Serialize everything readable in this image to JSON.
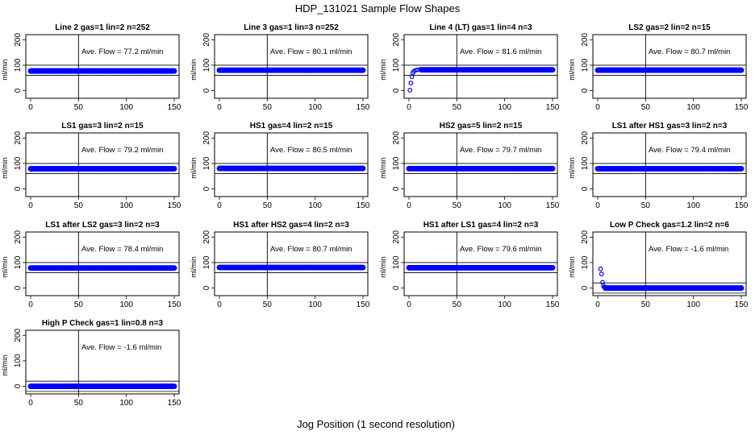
{
  "figure": {
    "title": "HDP_131021  Sample Flow Shapes",
    "xlabel": "Jog Position (1 second resolution)"
  },
  "colors": {
    "points": "#0000ff",
    "lines": "#000000",
    "background": "#ffffff"
  },
  "chart_data": [
    {
      "type": "scatter",
      "title": "Line 2 gas=1 lin=2 n=252",
      "annotation": "Ave. Flow =  77.2  ml/min",
      "ylabel": "ml/min",
      "xlim": [
        0,
        150
      ],
      "ylim": [
        -30,
        220
      ],
      "xticks": [
        0,
        50,
        100,
        150
      ],
      "yticks": [
        0,
        100,
        200
      ],
      "hlines": [
        60,
        100
      ],
      "vline": 50,
      "shape": "flat",
      "value": 77.2,
      "x_range": [
        0,
        150
      ]
    },
    {
      "type": "scatter",
      "title": "Line 3 gas=1 lin=3 n=252",
      "annotation": "Ave. Flow =  80.1  ml/min",
      "ylabel": "ml/min",
      "xlim": [
        0,
        150
      ],
      "ylim": [
        -30,
        220
      ],
      "xticks": [
        0,
        50,
        100,
        150
      ],
      "yticks": [
        0,
        100,
        200
      ],
      "hlines": [
        60,
        100
      ],
      "vline": 50,
      "shape": "flat",
      "value": 80.1,
      "x_range": [
        0,
        150
      ]
    },
    {
      "type": "scatter",
      "title": "Line 4 (LT) gas=1 lin=4 n=3",
      "annotation": "Ave. Flow =  81.6  ml/min",
      "ylabel": "ml/min",
      "xlim": [
        0,
        150
      ],
      "ylim": [
        -30,
        220
      ],
      "xticks": [
        0,
        50,
        100,
        150
      ],
      "yticks": [
        0,
        100,
        200
      ],
      "hlines": [
        60,
        100
      ],
      "vline": 50,
      "shape": "rise",
      "value": 81.6,
      "x_range": [
        0,
        150
      ],
      "start_points": [
        {
          "x": 1,
          "y": 2
        },
        {
          "x": 2,
          "y": 30
        },
        {
          "x": 3,
          "y": 55
        },
        {
          "x": 4,
          "y": 70
        },
        {
          "x": 5,
          "y": 76
        },
        {
          "x": 7,
          "y": 80
        },
        {
          "x": 9,
          "y": 82
        },
        {
          "x": 12,
          "y": 84
        }
      ]
    },
    {
      "type": "scatter",
      "title": "LS2 gas=2 lin=2 n=15",
      "annotation": "Ave. Flow =  80.7  ml/min",
      "ylabel": "ml/min",
      "xlim": [
        0,
        150
      ],
      "ylim": [
        -30,
        220
      ],
      "xticks": [
        0,
        50,
        100,
        150
      ],
      "yticks": [
        0,
        100,
        200
      ],
      "hlines": [
        60,
        100
      ],
      "vline": 50,
      "shape": "flat",
      "value": 80.7,
      "x_range": [
        0,
        150
      ]
    },
    {
      "type": "scatter",
      "title": "LS1 gas=3 lin=2 n=15",
      "annotation": "Ave. Flow =  79.2  ml/min",
      "ylabel": "ml/min",
      "xlim": [
        0,
        150
      ],
      "ylim": [
        -30,
        220
      ],
      "xticks": [
        0,
        50,
        100,
        150
      ],
      "yticks": [
        0,
        100,
        200
      ],
      "hlines": [
        60,
        100
      ],
      "vline": 50,
      "shape": "flat",
      "value": 79.2,
      "x_range": [
        0,
        150
      ]
    },
    {
      "type": "scatter",
      "title": "HS1 gas=4 lin=2 n=15",
      "annotation": "Ave. Flow =  80.5  ml/min",
      "ylabel": "ml/min",
      "xlim": [
        0,
        150
      ],
      "ylim": [
        -30,
        220
      ],
      "xticks": [
        0,
        50,
        100,
        150
      ],
      "yticks": [
        0,
        100,
        200
      ],
      "hlines": [
        60,
        100
      ],
      "vline": 50,
      "shape": "flat",
      "value": 80.5,
      "x_range": [
        0,
        150
      ]
    },
    {
      "type": "scatter",
      "title": "HS2 gas=5 lin=2 n=15",
      "annotation": "Ave. Flow =  79.7  ml/min",
      "ylabel": "ml/min",
      "xlim": [
        0,
        150
      ],
      "ylim": [
        -30,
        220
      ],
      "xticks": [
        0,
        50,
        100,
        150
      ],
      "yticks": [
        0,
        100,
        200
      ],
      "hlines": [
        60,
        100
      ],
      "vline": 50,
      "shape": "flat",
      "value": 79.7,
      "x_range": [
        0,
        150
      ]
    },
    {
      "type": "scatter",
      "title": "LS1 after HS1 gas=3 lin=2 n=3",
      "annotation": "Ave. Flow =  79.4  ml/min",
      "ylabel": "ml/min",
      "xlim": [
        0,
        150
      ],
      "ylim": [
        -30,
        220
      ],
      "xticks": [
        0,
        50,
        100,
        150
      ],
      "yticks": [
        0,
        100,
        200
      ],
      "hlines": [
        60,
        100
      ],
      "vline": 50,
      "shape": "flat",
      "value": 79.4,
      "x_range": [
        0,
        150
      ]
    },
    {
      "type": "scatter",
      "title": "LS1 after LS2 gas=3 lin=2 n=3",
      "annotation": "Ave. Flow =  78.4  ml/min",
      "ylabel": "ml/min",
      "xlim": [
        0,
        150
      ],
      "ylim": [
        -30,
        220
      ],
      "xticks": [
        0,
        50,
        100,
        150
      ],
      "yticks": [
        0,
        100,
        200
      ],
      "hlines": [
        60,
        100
      ],
      "vline": 50,
      "shape": "flat",
      "value": 78.4,
      "x_range": [
        0,
        150
      ]
    },
    {
      "type": "scatter",
      "title": "HS1 after HS2 gas=4 lin=2 n=3",
      "annotation": "Ave. Flow =  80.7  ml/min",
      "ylabel": "ml/min",
      "xlim": [
        0,
        150
      ],
      "ylim": [
        -30,
        220
      ],
      "xticks": [
        0,
        50,
        100,
        150
      ],
      "yticks": [
        0,
        100,
        200
      ],
      "hlines": [
        60,
        100
      ],
      "vline": 50,
      "shape": "flat",
      "value": 80.7,
      "x_range": [
        0,
        150
      ]
    },
    {
      "type": "scatter",
      "title": "HS1 after LS1 gas=4 lin=2 n=3",
      "annotation": "Ave. Flow =  79.6  ml/min",
      "ylabel": "ml/min",
      "xlim": [
        0,
        150
      ],
      "ylim": [
        -30,
        220
      ],
      "xticks": [
        0,
        50,
        100,
        150
      ],
      "yticks": [
        0,
        100,
        200
      ],
      "hlines": [
        60,
        100
      ],
      "vline": 50,
      "shape": "flat",
      "value": 79.6,
      "x_range": [
        0,
        150
      ]
    },
    {
      "type": "scatter",
      "title": "Low P Check gas=1.2 lin=2 n=6",
      "annotation": "Ave. Flow =  -1.6  ml/min",
      "ylabel": "ml/min",
      "xlim": [
        0,
        150
      ],
      "ylim": [
        -30,
        220
      ],
      "xticks": [
        0,
        50,
        100,
        150
      ],
      "yticks": [
        0,
        100,
        200
      ],
      "hlines": [
        -20,
        20
      ],
      "vline": 50,
      "shape": "decay",
      "value": 0,
      "x_range": [
        0,
        150
      ],
      "start_points": [
        {
          "x": 3,
          "y": 75
        },
        {
          "x": 4,
          "y": 55
        },
        {
          "x": 5,
          "y": 22
        },
        {
          "x": 6,
          "y": 8
        },
        {
          "x": 7,
          "y": 3
        }
      ]
    },
    {
      "type": "scatter",
      "title": "High P Check gas=1 lin=0.8 n=3",
      "annotation": "Ave. Flow =  -1.6  ml/min",
      "ylabel": "ml/min",
      "xlim": [
        0,
        150
      ],
      "ylim": [
        -30,
        220
      ],
      "xticks": [
        0,
        50,
        100,
        150
      ],
      "yticks": [
        0,
        100,
        200
      ],
      "hlines": [
        -20,
        20
      ],
      "vline": 50,
      "shape": "flat",
      "value": 0,
      "x_range": [
        0,
        150
      ]
    }
  ]
}
